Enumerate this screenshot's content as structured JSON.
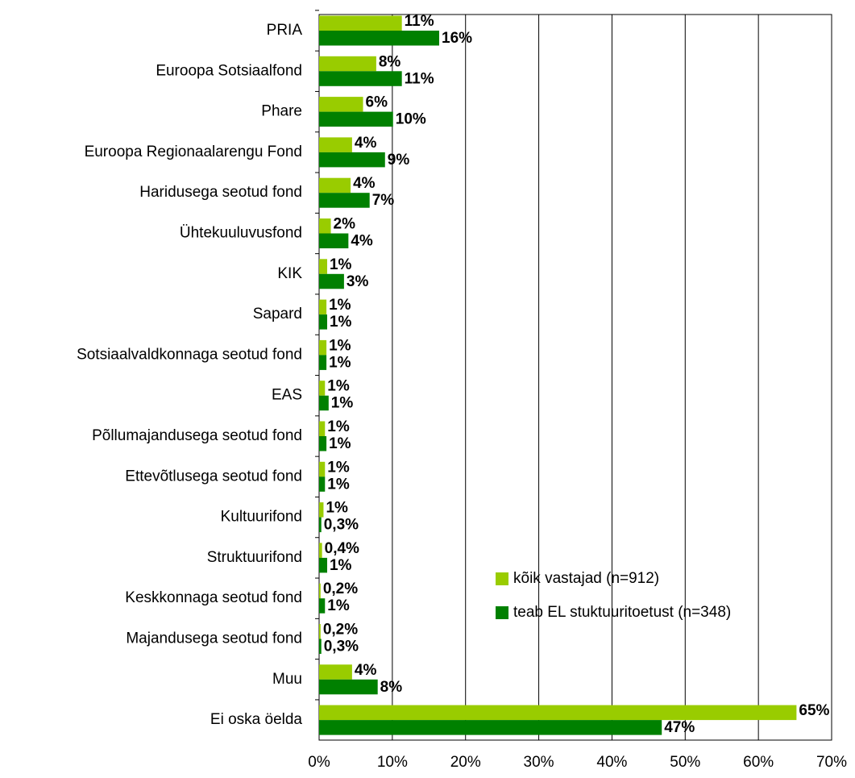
{
  "chart_data": {
    "type": "barh",
    "categories": [
      "PRIA",
      "Euroopa Sotsiaalfond",
      "Phare",
      "Euroopa Regionaalarengu Fond",
      "Haridusega seotud fond",
      "Ühtekuuluvusfond",
      "KIK",
      "Sapard",
      "Sotsiaalvaldkonnaga seotud fond",
      "EAS",
      "Põllumajandusega seotud fond",
      "Ettevõtlusega seotud fond",
      "Kultuurifond",
      "Struktuurifond",
      "Keskkonnaga seotud fond",
      "Majandusega seotud fond",
      "Muu",
      "Ei oska öelda"
    ],
    "series": [
      {
        "name": "kõik vastajad (n=912)",
        "color": "#99cc00",
        "values": [
          11.3,
          7.8,
          6.0,
          4.5,
          4.3,
          1.6,
          1.1,
          1.0,
          1.0,
          0.8,
          0.8,
          0.8,
          0.6,
          0.4,
          0.2,
          0.2,
          4.5,
          65.2
        ],
        "value_labels": [
          "11%",
          "8%",
          "6%",
          "4%",
          "4%",
          "2%",
          "1%",
          "1%",
          "1%",
          "1%",
          "1%",
          "1%",
          "1%",
          "0,4%",
          "0,2%",
          "0,2%",
          "4%",
          "65%"
        ]
      },
      {
        "name": "teab EL stuktuuritoetust (n=348)",
        "color": "#008000",
        "values": [
          16.4,
          11.3,
          10.1,
          9.0,
          6.9,
          4.0,
          3.4,
          1.1,
          1.0,
          1.3,
          1.0,
          0.8,
          0.3,
          1.1,
          0.8,
          0.3,
          8.0,
          46.8
        ],
        "value_labels": [
          "16%",
          "11%",
          "10%",
          "9%",
          "7%",
          "4%",
          "3%",
          "1%",
          "1%",
          "1%",
          "1%",
          "1%",
          "0,3%",
          "1%",
          "1%",
          "0,3%",
          "8%",
          "47%"
        ]
      }
    ],
    "xlim": [
      0,
      70
    ],
    "xticks": [
      {
        "value": 0,
        "label": "0%"
      },
      {
        "value": 10,
        "label": "10%"
      },
      {
        "value": 20,
        "label": "20%"
      },
      {
        "value": 30,
        "label": "30%"
      },
      {
        "value": 40,
        "label": "40%"
      },
      {
        "value": 50,
        "label": "50%"
      },
      {
        "value": 60,
        "label": "60%"
      },
      {
        "value": 70,
        "label": "70%"
      }
    ],
    "grid": true,
    "legend": "lower right"
  }
}
